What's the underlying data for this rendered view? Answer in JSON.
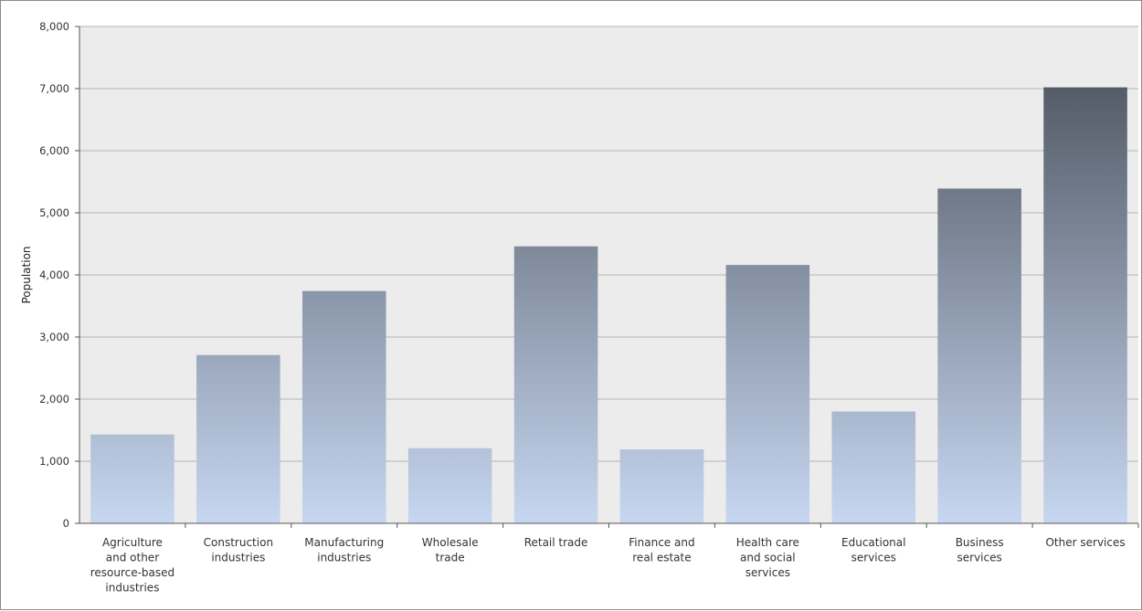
{
  "chart_data": {
    "type": "bar",
    "ylabel": "Population",
    "xlabel": "",
    "ylim": [
      0,
      8000
    ],
    "yticks": [
      0,
      1000,
      2000,
      3000,
      4000,
      5000,
      6000,
      7000,
      8000
    ],
    "ytick_labels": [
      "0",
      "1,000",
      "2,000",
      "3,000",
      "4,000",
      "5,000",
      "6,000",
      "7,000",
      "8,000"
    ],
    "grid": true,
    "categories": [
      [
        "Agriculture",
        "and other",
        "resource-based",
        "industries"
      ],
      [
        "Construction",
        "industries"
      ],
      [
        "Manufacturing",
        "industries"
      ],
      [
        "Wholesale",
        "trade"
      ],
      [
        "Retail trade"
      ],
      [
        "Finance and",
        "real estate"
      ],
      [
        "Health care",
        "and social",
        "services"
      ],
      [
        "Educational",
        "services"
      ],
      [
        "Business",
        "services"
      ],
      [
        "Other services"
      ]
    ],
    "values": [
      1430,
      2710,
      3740,
      1210,
      4460,
      1190,
      4160,
      1800,
      5390,
      7020
    ],
    "colors": {
      "plot_background": "#ececec",
      "gridline": "#b4b4b4",
      "bar_top_dark": "#454b55",
      "bar_bottom_light": "#c7d7f1"
    }
  }
}
